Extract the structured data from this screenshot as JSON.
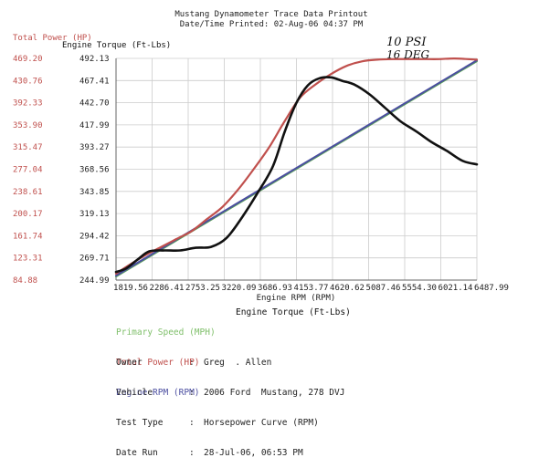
{
  "header": {
    "title": "Mustang Dynamometer Trace Data Printout",
    "printed": "Date/Time Printed: 02-Aug-06 04:37 PM"
  },
  "chart_data": {
    "type": "line",
    "xlabel": "Engine RPM (RPM)",
    "ylabel_left_outer": "Total Power (HP)",
    "ylabel_left_inner": "Engine Torque (Ft-Lbs)",
    "x_ticks": [
      "1819.56",
      "2286.41",
      "2753.25",
      "3220.09",
      "3686.93",
      "4153.77",
      "4620.62",
      "5087.46",
      "5554.30",
      "6021.14",
      "6487.99"
    ],
    "hp_ticks": [
      "469.20",
      "430.76",
      "392.33",
      "353.90",
      "315.47",
      "277.04",
      "238.61",
      "200.17",
      "161.74",
      "123.31",
      "84.88"
    ],
    "torque_ticks": [
      "492.13",
      "467.41",
      "442.70",
      "417.99",
      "393.27",
      "368.56",
      "343.85",
      "319.13",
      "294.42",
      "269.71",
      "244.99"
    ],
    "xlim": [
      1819.56,
      6487.99
    ],
    "hp_lim": [
      84.88,
      469.2
    ],
    "torque_lim": [
      244.99,
      492.13
    ],
    "grid": true,
    "series": [
      {
        "name": "Total Power (HP)",
        "color": "#c0504d",
        "axis": "hp",
        "x": [
          1819.56,
          2000,
          2200,
          2400,
          2600,
          2800,
          3000,
          3200,
          3400,
          3600,
          3800,
          4000,
          4200,
          4400,
          4600,
          4800,
          5000,
          5200,
          5400,
          5600,
          5800,
          6000,
          6200,
          6487.99
        ],
        "y": [
          96,
          112,
          128,
          142,
          156,
          170,
          191,
          212,
          242,
          277,
          315,
          360,
          401,
          424,
          442,
          456,
          464,
          467,
          468,
          468,
          468,
          468,
          469,
          467
        ]
      },
      {
        "name": "Engine Torque (Ft-Lbs)",
        "color": "#111111",
        "axis": "torque",
        "x": [
          1819.56,
          1950,
          2100,
          2250,
          2450,
          2650,
          2850,
          3050,
          3250,
          3450,
          3650,
          3850,
          4000,
          4150,
          4300,
          4450,
          4600,
          4750,
          4900,
          5100,
          5300,
          5500,
          5700,
          5900,
          6100,
          6300,
          6487.99
        ],
        "y": [
          254,
          258,
          268,
          277,
          278,
          278,
          281,
          282,
          292,
          315,
          342,
          372,
          410,
          442,
          462,
          470,
          471,
          467,
          463,
          452,
          437,
          422,
          411,
          399,
          389,
          378,
          374
        ]
      },
      {
        "name": "Primary Speed (MPH)",
        "color": "#5aa05a",
        "axis": "torque",
        "x": [
          1819.56,
          6487.99
        ],
        "y": [
          249,
          489
        ]
      },
      {
        "name": "Engine RPM (RPM)",
        "color": "#4b4ea0",
        "axis": "torque",
        "x": [
          1819.56,
          6487.99
        ],
        "y": [
          250,
          490
        ]
      }
    ],
    "annotation": [
      "10 PSI",
      "16 DEG"
    ]
  },
  "legend": {
    "primary_speed": "Primary Speed (MPH)",
    "total_power": "Total Power (HP)",
    "engine_rpm": "Engine RPM (RPM)",
    "engine_torque": "Engine Torque (Ft-Lbs)"
  },
  "info": [
    {
      "label": "Owner",
      "value": "Greg  . Allen"
    },
    {
      "label": "Vehicle",
      "value": "2006 Ford  Mustang, 278 DVJ"
    },
    {
      "label": "Test Type",
      "value": "Horsepower Curve (RPM)"
    },
    {
      "label": "Date Run",
      "value": "28-Jul-06, 06:53 PM"
    }
  ],
  "colors": {
    "hp": "#c0504d",
    "torque": "#111111",
    "speed": "#5aa05a",
    "rpm": "#4b4ea0",
    "grid": "#cccccc"
  }
}
